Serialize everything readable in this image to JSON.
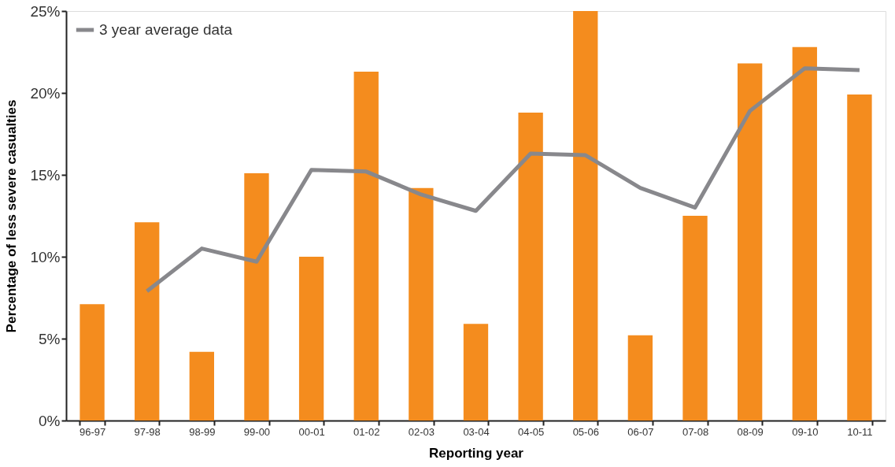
{
  "chart_data": {
    "type": "bar",
    "xlabel": "Reporting year",
    "ylabel": "Percentage of less severe casualties",
    "categories": [
      "96-97",
      "97-98",
      "98-99",
      "99-00",
      "00-01",
      "01-02",
      "02-03",
      "03-04",
      "04-05",
      "05-06",
      "06-07",
      "07-08",
      "08-09",
      "09-10",
      "10-11"
    ],
    "series": [
      {
        "color": "#f48c1e",
        "values": [
          7.1,
          12.1,
          4.2,
          15.1,
          10.0,
          21.3,
          14.2,
          5.9,
          18.8,
          25.0,
          5.2,
          12.5,
          21.8,
          22.8,
          19.9
        ]
      },
      {
        "type": "line",
        "name": "3 year average data",
        "color": "#88888c",
        "values": [
          null,
          7.9,
          10.5,
          9.7,
          15.3,
          15.2,
          13.8,
          12.8,
          16.3,
          16.2,
          14.2,
          13.0,
          18.9,
          21.5,
          21.4
        ]
      }
    ],
    "ylim": [
      0,
      25
    ],
    "yticks": [
      {
        "value": 0,
        "label": "0%"
      },
      {
        "value": 5,
        "label": "5%"
      },
      {
        "value": 10,
        "label": "10%"
      },
      {
        "value": 15,
        "label": "15%"
      },
      {
        "value": 20,
        "label": "20%"
      },
      {
        "value": 25,
        "label": "25%"
      }
    ],
    "grid": false,
    "legend": "top left",
    "marker": "none",
    "line_style": "solid"
  }
}
